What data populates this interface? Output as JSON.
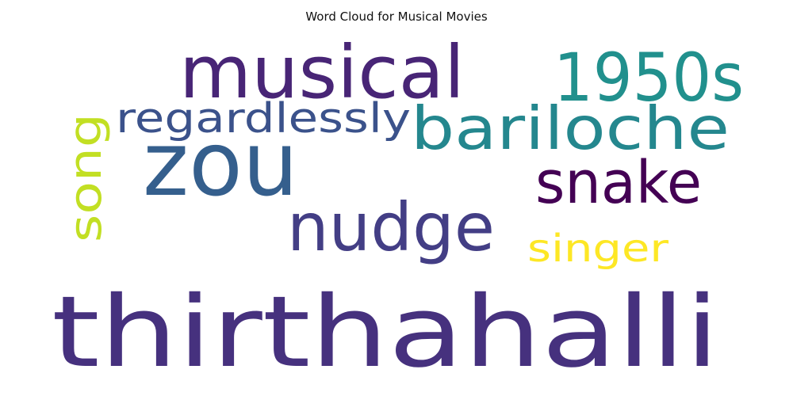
{
  "chart_data": {
    "type": "wordcloud",
    "title": "Word Cloud for Musical Movies",
    "words": [
      {
        "text": "thirthahalli",
        "color": "#46317e",
        "orientation": "horizontal"
      },
      {
        "text": "zou",
        "color": "#355f8d",
        "orientation": "horizontal"
      },
      {
        "text": "musical",
        "color": "#482576",
        "orientation": "horizontal"
      },
      {
        "text": "nudge",
        "color": "#433e85",
        "orientation": "horizontal"
      },
      {
        "text": "1950s",
        "color": "#21908d",
        "orientation": "horizontal"
      },
      {
        "text": "bariloche",
        "color": "#24878e",
        "orientation": "horizontal"
      },
      {
        "text": "snake",
        "color": "#440154",
        "orientation": "horizontal"
      },
      {
        "text": "regardlessly",
        "color": "#3b528b",
        "orientation": "horizontal"
      },
      {
        "text": "song",
        "color": "#c2df23",
        "orientation": "vertical"
      },
      {
        "text": "singer",
        "color": "#fde725",
        "orientation": "horizontal"
      }
    ]
  }
}
